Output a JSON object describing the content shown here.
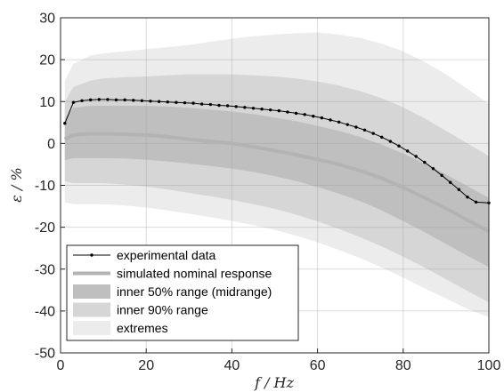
{
  "chart_data": {
    "type": "line",
    "xlabel": "f  /  Hz",
    "ylabel": "ε  /  %",
    "xlim": [
      0,
      100
    ],
    "ylim": [
      -50,
      30
    ],
    "xticks": [
      0,
      20,
      40,
      60,
      80,
      100
    ],
    "yticks": [
      30,
      20,
      10,
      0,
      -10,
      -20,
      -30,
      -40,
      -50
    ],
    "grid": true,
    "legend_position": "bottom-left",
    "x": [
      1,
      3,
      7,
      10,
      15,
      20,
      25,
      30,
      35,
      40,
      45,
      50,
      55,
      60,
      65,
      70,
      75,
      80,
      85,
      90,
      95,
      100
    ],
    "series": [
      {
        "name": "experimental data",
        "role": "line-markers",
        "color": "#000000",
        "x": [
          1,
          3,
          5,
          7,
          9,
          11,
          13,
          15,
          17,
          19,
          21,
          23,
          25,
          27,
          29,
          31,
          33,
          35,
          37,
          39,
          41,
          43,
          45,
          47,
          49,
          51,
          53,
          55,
          57,
          59,
          61,
          63,
          65,
          67,
          69,
          71,
          73,
          75,
          77,
          79,
          81,
          83,
          85,
          87,
          89,
          91,
          93,
          95,
          97,
          100
        ],
        "values": [
          4.8,
          9.8,
          10.2,
          10.4,
          10.5,
          10.5,
          10.4,
          10.4,
          10.3,
          10.2,
          10.1,
          10.0,
          9.9,
          9.8,
          9.7,
          9.6,
          9.4,
          9.3,
          9.1,
          9.0,
          8.8,
          8.6,
          8.4,
          8.2,
          8.0,
          7.8,
          7.5,
          7.2,
          6.9,
          6.5,
          6.1,
          5.6,
          5.1,
          4.5,
          3.9,
          3.2,
          2.4,
          1.5,
          0.5,
          -0.6,
          -1.8,
          -3.1,
          -4.5,
          -6.0,
          -7.6,
          -9.3,
          -11.0,
          -12.8,
          -14.0,
          -14.2
        ]
      },
      {
        "name": "simulated nominal response",
        "role": "line",
        "color": "#b3b3b3",
        "values": [
          1,
          2,
          2.3,
          2.3,
          2.2,
          2.0,
          1.6,
          1.0,
          0.5,
          0,
          -0.8,
          -1.7,
          -2.7,
          -3.8,
          -5.0,
          -6.5,
          -8.3,
          -10.5,
          -13,
          -15.5,
          -18.3,
          -21
        ]
      },
      {
        "name": "inner 50% range (midrange)",
        "role": "band",
        "color": "#bfbfbf",
        "upper": [
          6,
          8.5,
          9,
          9,
          9,
          9,
          8.8,
          8.5,
          8.1,
          7.6,
          7.0,
          6.2,
          5.3,
          4.2,
          3.0,
          1.5,
          -0.3,
          -2.4,
          -4.8,
          -7.4,
          -10.2,
          -13
        ],
        "lower": [
          -4,
          -3.5,
          -3.5,
          -3.5,
          -3.6,
          -3.9,
          -4.3,
          -4.8,
          -5.4,
          -6.0,
          -6.8,
          -7.8,
          -9.0,
          -10.4,
          -12.0,
          -13.8,
          -16.0,
          -18.5,
          -21.2,
          -24.0,
          -26.8,
          -29.5
        ]
      },
      {
        "name": "inner 90% range",
        "role": "band",
        "color": "#d6d6d6",
        "upper": [
          10,
          13.5,
          15,
          15.5,
          15.8,
          16,
          16.3,
          16.5,
          16.5,
          16.5,
          16.3,
          16.0,
          15.5,
          14.8,
          13.8,
          12.5,
          10.8,
          8.6,
          6.0,
          3.0,
          0,
          -3
        ],
        "lower": [
          -9,
          -9.5,
          -9.5,
          -9.5,
          -9.8,
          -10.3,
          -11.0,
          -11.8,
          -12.6,
          -13.5,
          -14.5,
          -15.6,
          -17.0,
          -18.6,
          -20.4,
          -22.4,
          -24.6,
          -27.0,
          -29.6,
          -32.4,
          -35.2,
          -38.0
        ]
      },
      {
        "name": "extremes",
        "role": "band",
        "color": "#ececec",
        "upper": [
          15,
          19,
          21,
          21.5,
          22,
          22.5,
          23,
          23.5,
          24.3,
          25,
          25.6,
          26,
          26.3,
          26.5,
          26,
          25.2,
          23.8,
          22,
          19.5,
          16.5,
          13,
          9.5
        ],
        "lower": [
          -14,
          -14.5,
          -14.5,
          -14.5,
          -14.8,
          -15.3,
          -16.0,
          -16.8,
          -17.6,
          -18.5,
          -19.5,
          -20.6,
          -22.0,
          -23.6,
          -25.4,
          -27.4,
          -29.6,
          -32.0,
          -34.6,
          -37.0,
          -39.5,
          -41.5
        ]
      }
    ]
  }
}
